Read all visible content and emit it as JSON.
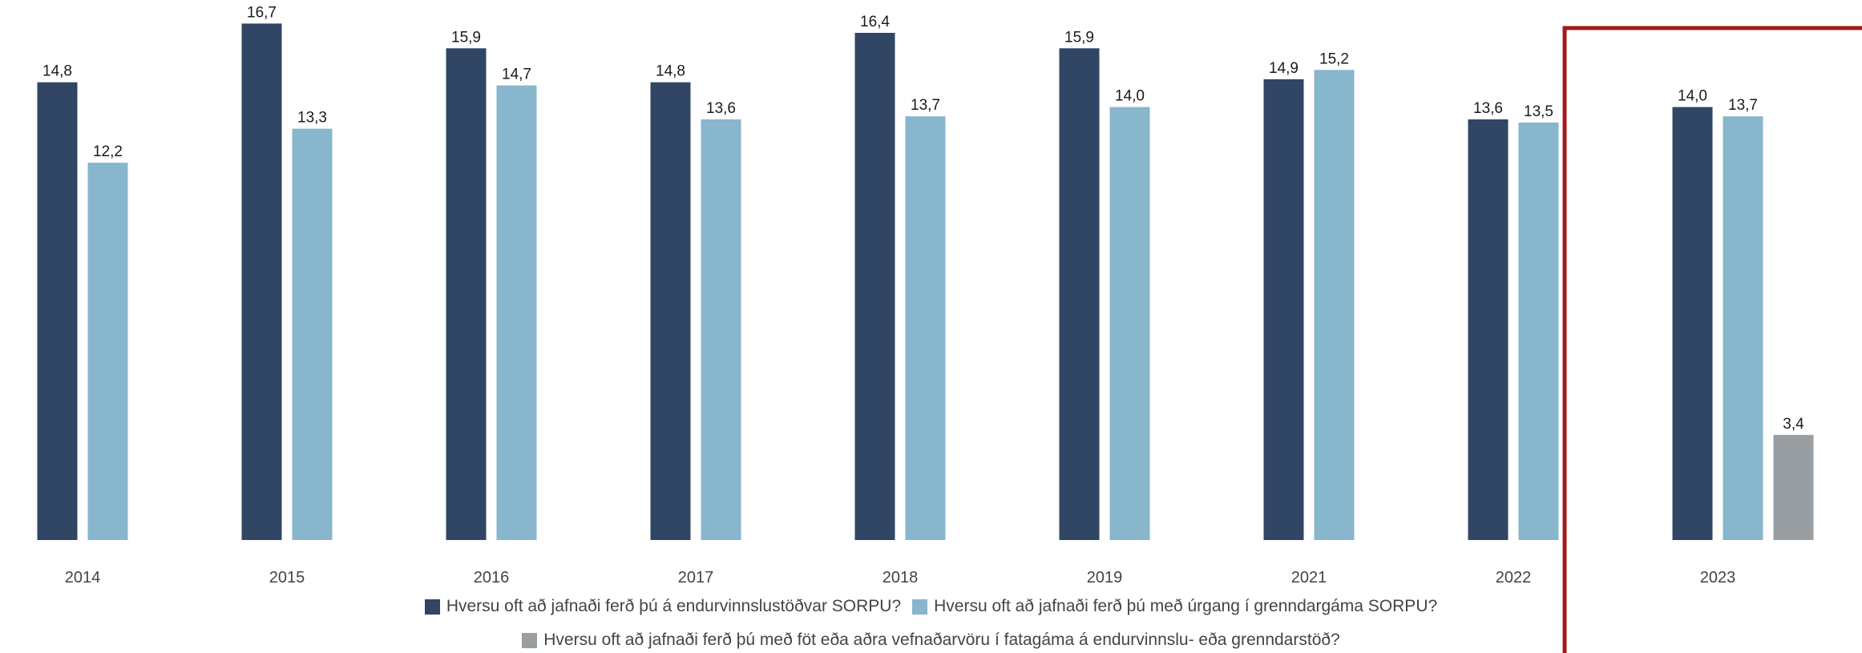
{
  "chart_data": {
    "type": "bar",
    "categories": [
      "2014",
      "2015",
      "2016",
      "2017",
      "2018",
      "2019",
      "2021",
      "2022",
      "2023"
    ],
    "series": [
      {
        "name": "Hversu oft að jafnaði ferð þú á endurvinnslustöðvar SORPU?",
        "color": "#314564",
        "values": [
          14.8,
          16.7,
          15.9,
          14.8,
          16.4,
          15.9,
          14.9,
          13.6,
          14.0
        ],
        "labels": [
          "14,8",
          "16,7",
          "15,9",
          "14,8",
          "16,4",
          "15,9",
          "14,9",
          "13,6",
          "14,0"
        ]
      },
      {
        "name": "Hversu oft að jafnaði ferð þú með úrgang í grenndargáma SORPU?",
        "color": "#88b6cc",
        "values": [
          12.2,
          13.3,
          14.7,
          13.6,
          13.7,
          14.0,
          15.2,
          13.5,
          13.7
        ],
        "labels": [
          "12,2",
          "13,3",
          "14,7",
          "13,6",
          "13,7",
          "14,0",
          "15,2",
          "13,5",
          "13,7"
        ]
      },
      {
        "name": "Hversu oft að jafnaði ferð þú með föt eða aðra vefnaðarvöru í fatagáma á endurvinnslu- eða grenndarstöð?",
        "color": "#989ea1",
        "values": [
          null,
          null,
          null,
          null,
          null,
          null,
          null,
          null,
          3.4
        ],
        "labels": [
          "",
          "",
          "",
          "",
          "",
          "",
          "",
          "",
          "3,4"
        ]
      }
    ],
    "ylim": [
      0,
      17
    ],
    "grid": false,
    "legend_position": "bottom-center",
    "highlight": {
      "category": "2023",
      "color": "#a01c1c"
    }
  }
}
